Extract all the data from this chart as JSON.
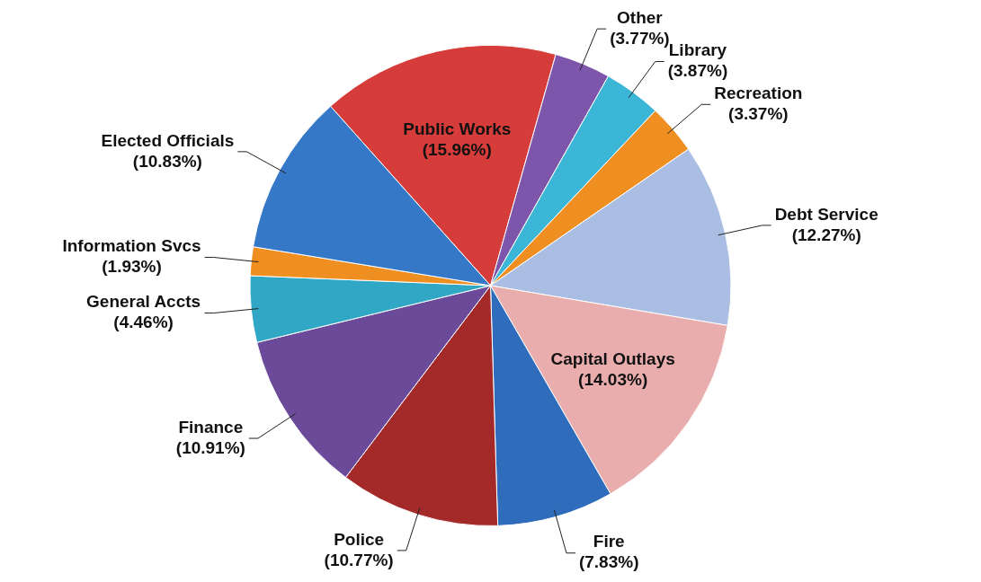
{
  "chart_data": {
    "type": "pie",
    "categories": [
      "Public Works",
      "Other",
      "Library",
      "Recreation",
      "Debt Service",
      "Capital Outlays",
      "Fire",
      "Police",
      "Finance",
      "General Accts",
      "Information Svcs",
      "Elected Officials"
    ],
    "values": [
      15.96,
      3.77,
      3.87,
      3.37,
      12.27,
      14.03,
      7.83,
      10.77,
      10.91,
      4.46,
      1.93,
      10.83
    ],
    "value_labels": [
      "(15.96%)",
      "(3.77%)",
      "(3.87%)",
      "(3.37%)",
      "(12.27%)",
      "(14.03%)",
      "(7.83%)",
      "(10.77%)",
      "(10.91%)",
      "(4.46%)",
      "(1.93%)",
      "(10.83%)"
    ],
    "colors": [
      "#d63c3a",
      "#7d55ab",
      "#3cb6d6",
      "#ef8f22",
      "#a9bee2",
      "#e9adad",
      "#2f6cbc",
      "#a32a29",
      "#6b4b99",
      "#31a7c6",
      "#ef8f22",
      "#3578c7"
    ]
  }
}
